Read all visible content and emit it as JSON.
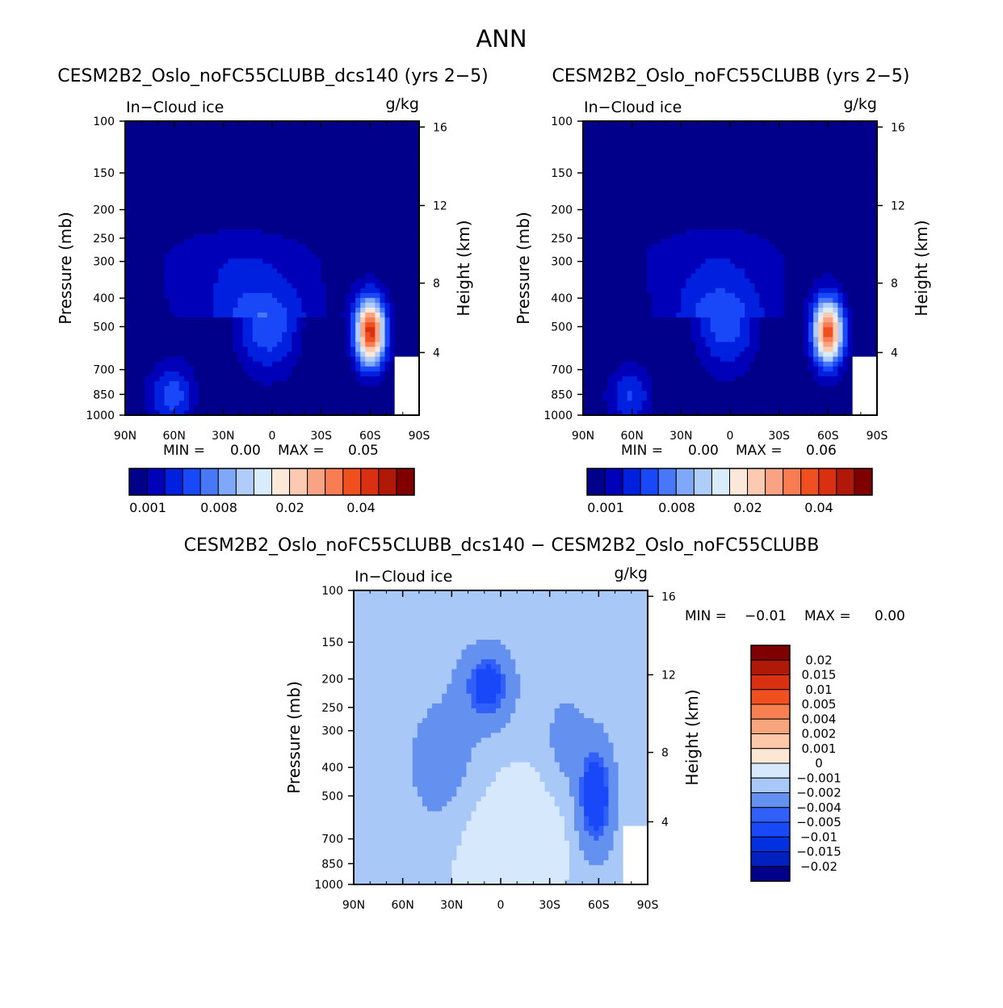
{
  "page_title": "ANN",
  "colors": {
    "seq": [
      "#00008a",
      "#0000b8",
      "#0020e0",
      "#1848f8",
      "#4878f8",
      "#80a8f8",
      "#b0ccf8",
      "#d8ecfc",
      "#fce8d8",
      "#fccab0",
      "#f8a484",
      "#f87c54",
      "#f05020",
      "#d83010",
      "#b01808",
      "#800000"
    ],
    "diff": [
      "#00008a",
      "#0020c0",
      "#0030e0",
      "#1848f8",
      "#3060f8",
      "#6490f0",
      "#a8c8f8",
      "#d6e8fc",
      "#fce6d4",
      "#fcc8a8",
      "#f8a47c",
      "#f88050",
      "#f05020",
      "#d83010",
      "#b01808",
      "#800000"
    ],
    "diff_field_bg": "#d6e8fc"
  },
  "panels": [
    {
      "title": "CESM2B2_Oslo_noFC55CLUBB_dcs140 (yrs 2−5)",
      "left_label": "In−Cloud ice",
      "right_label": "g/kg",
      "min_label": "MIN =",
      "min_value": "0.00",
      "max_label": "MAX =",
      "max_value": "0.05",
      "colorbar_labels": [
        "0.001",
        "0.008",
        "0.02",
        "0.04"
      ]
    },
    {
      "title": "CESM2B2_Oslo_noFC55CLUBB (yrs 2−5)",
      "left_label": "In−Cloud ice",
      "right_label": "g/kg",
      "min_label": "MIN =",
      "min_value": "0.00",
      "max_label": "MAX =",
      "max_value": "0.06",
      "colorbar_labels": [
        "0.001",
        "0.008",
        "0.02",
        "0.04"
      ]
    },
    {
      "title": "CESM2B2_Oslo_noFC55CLUBB_dcs140 − CESM2B2_Oslo_noFC55CLUBB",
      "left_label": "In−Cloud ice",
      "right_label": "g/kg",
      "min_label": "MIN =",
      "min_value": "−0.01",
      "max_label": "MAX =",
      "max_value": "0.00",
      "colorbar_labels": [
        "0.02",
        "0.015",
        "0.01",
        "0.005",
        "0.004",
        "0.002",
        "0.001",
        "0",
        "−0.001",
        "−0.002",
        "−0.004",
        "−0.005",
        "−0.01",
        "−0.015",
        "−0.02"
      ]
    }
  ],
  "chart_data": [
    {
      "type": "heatmap",
      "title": "CESM2B2_Oslo_noFC55CLUBB_dcs140 (yrs 2−5)",
      "variable": "In−Cloud ice",
      "units": "g/kg",
      "xlabel": "",
      "ylabel": "Pressure (mb)",
      "y2label": "Height (km)",
      "x_ticks": [
        "90N",
        "60N",
        "30N",
        "0",
        "30S",
        "60S",
        "90S"
      ],
      "y_ticks": [
        "100",
        "150",
        "200",
        "250",
        "300",
        "400",
        "500",
        "700",
        "850",
        "1000"
      ],
      "y2_ticks": [
        "16",
        "12",
        "8",
        "4"
      ],
      "xlim": [
        90,
        -90
      ],
      "ylim": [
        1000,
        100
      ],
      "min": 0.0,
      "max": 0.05,
      "features": [
        {
          "lat": 5,
          "p": 510,
          "w": 26,
          "h": 1.8,
          "v": 0.01
        },
        {
          "lat": -60,
          "p": 520,
          "w": 9,
          "h": 1.4,
          "v": 0.045
        },
        {
          "lat": 60,
          "p": 860,
          "w": 14,
          "h": 1.2,
          "v": 0.012
        },
        {
          "lat": 20,
          "p": 320,
          "w": 50,
          "h": 3.6,
          "v": 0.0055
        }
      ]
    },
    {
      "type": "heatmap",
      "title": "CESM2B2_Oslo_noFC55CLUBB (yrs 2−5)",
      "variable": "In−Cloud ice",
      "units": "g/kg",
      "xlabel": "",
      "ylabel": "Pressure (mb)",
      "y2label": "Height (km)",
      "x_ticks": [
        "90N",
        "60N",
        "30N",
        "0",
        "30S",
        "60S",
        "90S"
      ],
      "y_ticks": [
        "100",
        "150",
        "200",
        "250",
        "300",
        "400",
        "500",
        "700",
        "850",
        "1000"
      ],
      "y2_ticks": [
        "16",
        "12",
        "8",
        "4"
      ],
      "xlim": [
        90,
        -90
      ],
      "ylim": [
        1000,
        100
      ],
      "min": 0.0,
      "max": 0.06,
      "features": [
        {
          "lat": 5,
          "p": 490,
          "w": 26,
          "h": 1.9,
          "v": 0.012
        },
        {
          "lat": -60,
          "p": 520,
          "w": 9,
          "h": 1.4,
          "v": 0.05
        },
        {
          "lat": 60,
          "p": 860,
          "w": 14,
          "h": 1.2,
          "v": 0.012
        },
        {
          "lat": 10,
          "p": 260,
          "w": 50,
          "h": 4.4,
          "v": 0.006
        }
      ]
    },
    {
      "type": "heatmap",
      "title": "CESM2B2_Oslo_noFC55CLUBB_dcs140 − CESM2B2_Oslo_noFC55CLUBB",
      "variable": "In−Cloud ice",
      "units": "g/kg",
      "xlabel": "",
      "ylabel": "Pressure (mb)",
      "y2label": "Height (km)",
      "x_ticks": [
        "90N",
        "60N",
        "30N",
        "0",
        "30S",
        "60S",
        "90S"
      ],
      "y_ticks": [
        "100",
        "150",
        "200",
        "250",
        "300",
        "400",
        "500",
        "700",
        "850",
        "1000"
      ],
      "y2_ticks": [
        "16",
        "12",
        "8",
        "4"
      ],
      "xlim": [
        90,
        -90
      ],
      "ylim": [
        1000,
        100
      ],
      "min": -0.01,
      "max": 0.0,
      "levels": [
        -0.02,
        -0.015,
        -0.01,
        -0.005,
        -0.004,
        -0.002,
        -0.001,
        0,
        0.001,
        0.002,
        0.004,
        0.005,
        0.01,
        0.015,
        0.02
      ],
      "features": [
        {
          "lat": 8,
          "p": 210,
          "w": 14,
          "h": 1.5,
          "v": -0.005
        },
        {
          "lat": 35,
          "p": 400,
          "w": 25,
          "h": 3.5,
          "v": -0.0015
        },
        {
          "lat": -58,
          "p": 500,
          "w": 10,
          "h": 2.2,
          "v": -0.006
        },
        {
          "lat": -40,
          "p": 320,
          "w": 12,
          "h": 2.0,
          "v": -0.0015
        },
        {
          "lat": 0,
          "p": 690,
          "w": 36,
          "h": 2.8,
          "v": 0.0012
        }
      ]
    }
  ]
}
